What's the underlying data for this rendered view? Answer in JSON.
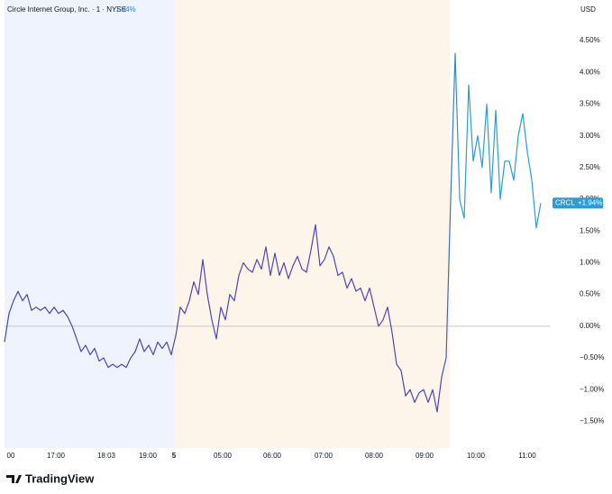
{
  "chart_data": {
    "type": "line",
    "title": "Circle Internet Group, Inc. · 1 · NYSE",
    "change": "1.94%",
    "currency": "USD",
    "brand": "TradingView",
    "xlim": [
      0,
      121
    ],
    "ylim": [
      -1.92,
      5.14
    ],
    "baseline": 0,
    "xticks": [
      {
        "value": 1.4,
        "label": "00"
      },
      {
        "value": 11.4,
        "label": "17:00"
      },
      {
        "value": 22.6,
        "label": "18:03"
      },
      {
        "value": 31.8,
        "label": "19:00"
      },
      {
        "value": 37.6,
        "label": "5"
      },
      {
        "value": 48.4,
        "label": "05:00"
      },
      {
        "value": 59.4,
        "label": "06:00"
      },
      {
        "value": 70.8,
        "label": "07:00"
      },
      {
        "value": 82,
        "label": "08:00"
      },
      {
        "value": 93.2,
        "label": "09:00"
      },
      {
        "value": 104.6,
        "label": "10:00"
      },
      {
        "value": 116,
        "label": "11:00"
      }
    ],
    "yticks": [
      {
        "value": 4.5,
        "label": "4.50%"
      },
      {
        "value": 4,
        "label": "4.00%"
      },
      {
        "value": 3.5,
        "label": "3.50%"
      },
      {
        "value": 3,
        "label": "3.00%"
      },
      {
        "value": 2.5,
        "label": "2.50%"
      },
      {
        "value": 2,
        "label": "2.00%"
      },
      {
        "value": 1.5,
        "label": "1.50%"
      },
      {
        "value": 1,
        "label": "1.00%"
      },
      {
        "value": 0.5,
        "label": "0.50%"
      },
      {
        "value": 0,
        "label": "0.00%"
      },
      {
        "value": -0.5,
        "label": "−0.50%"
      },
      {
        "value": -1,
        "label": "−1.00%"
      },
      {
        "value": -1.5,
        "label": "−1.50%"
      }
    ],
    "series": [
      {
        "name": "CRCL",
        "last_label": "+1.94%",
        "color": "#4c47b6",
        "color_after": "#2d9cd6",
        "values": [
          -0.25,
          0.2,
          0.4,
          0.55,
          0.4,
          0.5,
          0.25,
          0.3,
          0.25,
          0.3,
          0.2,
          0.3,
          0.2,
          0.25,
          0.15,
          0.0,
          -0.2,
          -0.4,
          -0.3,
          -0.45,
          -0.35,
          -0.55,
          -0.5,
          -0.65,
          -0.6,
          -0.65,
          -0.6,
          -0.65,
          -0.5,
          -0.4,
          -0.2,
          -0.4,
          -0.3,
          -0.45,
          -0.25,
          -0.35,
          -0.25,
          -0.45,
          -0.15,
          0.3,
          0.2,
          0.4,
          0.7,
          0.5,
          1.05,
          0.5,
          0.1,
          -0.2,
          0.3,
          0.1,
          0.5,
          0.4,
          0.8,
          1.0,
          0.9,
          0.85,
          1.05,
          0.9,
          1.25,
          0.8,
          1.15,
          0.8,
          1.0,
          0.75,
          0.95,
          1.1,
          0.9,
          0.85,
          1.2,
          1.6,
          0.95,
          1.05,
          1.25,
          1.1,
          0.8,
          0.85,
          0.6,
          0.75,
          0.55,
          0.6,
          0.4,
          0.6,
          0.3,
          0.0,
          0.1,
          0.3,
          -0.1,
          -0.6,
          -0.7,
          -1.1,
          -1.0,
          -1.2,
          -1.05,
          -1.0,
          -1.2,
          -1.0,
          -1.35,
          -0.8,
          -0.5,
          2.0,
          4.3,
          2.0,
          1.7,
          3.8,
          2.6,
          3.0,
          2.5,
          3.5,
          2.1,
          3.4,
          2.0,
          2.6,
          2.6,
          2.3,
          3.0,
          3.35,
          2.75,
          2.3,
          1.55,
          1.94
        ]
      }
    ]
  }
}
